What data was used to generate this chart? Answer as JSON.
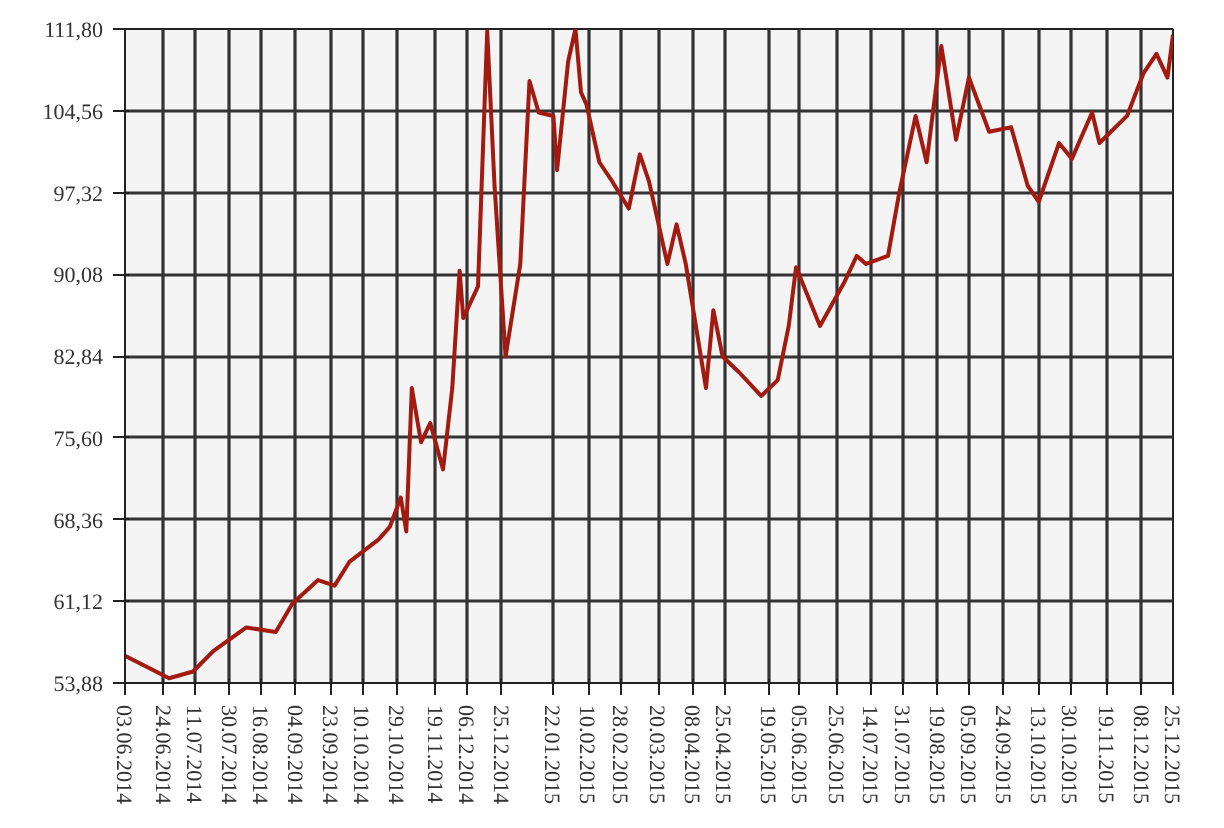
{
  "chart_data": {
    "type": "line",
    "color": "#a31a10",
    "grid": true,
    "marker": "none",
    "line_style": "solid",
    "x": [
      "2014-06-03",
      "2014-06-27",
      "2014-07-10",
      "2014-07-21",
      "2014-08-08",
      "2014-08-24",
      "2014-09-02",
      "2014-09-16",
      "2014-09-25",
      "2014-10-03",
      "2014-10-19",
      "2014-10-25",
      "2014-10-31",
      "2014-11-03",
      "2014-11-06",
      "2014-11-11",
      "2014-11-16",
      "2014-11-23",
      "2014-11-28",
      "2014-12-02",
      "2014-12-04",
      "2014-12-12",
      "2014-12-17",
      "2014-12-21",
      "2014-12-27",
      "2015-01-04",
      "2015-01-09",
      "2015-01-14",
      "2015-01-22",
      "2015-01-24",
      "2015-01-30",
      "2015-02-03",
      "2015-02-06",
      "2015-02-09",
      "2015-02-16",
      "2015-02-23",
      "2015-03-04",
      "2015-03-10",
      "2015-03-15",
      "2015-03-25",
      "2015-03-30",
      "2015-04-04",
      "2015-04-15",
      "2015-04-19",
      "2015-04-24",
      "2015-05-03",
      "2015-05-15",
      "2015-05-24",
      "2015-05-30",
      "2015-06-03",
      "2015-06-16",
      "2015-06-29",
      "2015-07-06",
      "2015-07-11",
      "2015-07-23",
      "2015-07-29",
      "2015-08-07",
      "2015-08-13",
      "2015-08-21",
      "2015-08-29",
      "2015-09-05",
      "2015-09-16",
      "2015-09-28",
      "2015-10-07",
      "2015-10-13",
      "2015-10-24",
      "2015-10-31",
      "2015-11-11",
      "2015-11-15",
      "2015-11-30",
      "2015-12-09",
      "2015-12-16",
      "2015-12-22",
      "2015-12-25"
    ],
    "values": [
      56.3,
      54.3,
      54.9,
      56.7,
      58.8,
      58.4,
      60.9,
      63.0,
      62.5,
      64.6,
      66.6,
      67.7,
      70.3,
      67.3,
      80.0,
      75.2,
      76.9,
      72.8,
      80.0,
      90.4,
      86.2,
      89.0,
      111.6,
      97.9,
      82.8,
      91.0,
      107.2,
      104.4,
      104.1,
      99.3,
      108.9,
      111.8,
      106.2,
      105.1,
      100.0,
      98.3,
      95.9,
      100.7,
      98.3,
      91.0,
      94.5,
      91.0,
      80.0,
      86.9,
      82.8,
      81.4,
      79.3,
      80.7,
      85.5,
      90.7,
      85.5,
      89.3,
      91.7,
      91.0,
      91.7,
      97.2,
      104.1,
      100.0,
      110.3,
      102.0,
      107.5,
      102.7,
      103.1,
      97.9,
      96.5,
      101.7,
      100.3,
      104.4,
      101.7,
      104.1,
      107.9,
      109.6,
      107.5,
      111.3
    ],
    "xlim": [
      "2014-06-03",
      "2015-12-25"
    ],
    "ylim": [
      53.88,
      111.8
    ],
    "yticks": [
      {
        "value": 53.88,
        "label": "53,88"
      },
      {
        "value": 61.12,
        "label": "61,12"
      },
      {
        "value": 68.36,
        "label": "68,36"
      },
      {
        "value": 75.6,
        "label": "75,60"
      },
      {
        "value": 82.84,
        "label": "82,84"
      },
      {
        "value": 90.08,
        "label": "90,08"
      },
      {
        "value": 97.32,
        "label": "97,32"
      },
      {
        "value": 104.56,
        "label": "104,56"
      },
      {
        "value": 111.8,
        "label": "111,80"
      }
    ],
    "xticks": [
      {
        "value": "2014-06-03",
        "label": "03.06.2014"
      },
      {
        "value": "2014-06-24",
        "label": "24.06.2014"
      },
      {
        "value": "2014-07-11",
        "label": "11.07.2014"
      },
      {
        "value": "2014-07-30",
        "label": "30.07.2014"
      },
      {
        "value": "2014-08-16",
        "label": "16.08.2014"
      },
      {
        "value": "2014-09-04",
        "label": "04.09.2014"
      },
      {
        "value": "2014-09-23",
        "label": "23.09.2014"
      },
      {
        "value": "2014-10-10",
        "label": "10.10.2014"
      },
      {
        "value": "2014-10-29",
        "label": "29.10.2014"
      },
      {
        "value": "2014-11-19",
        "label": "19.11.2014"
      },
      {
        "value": "2014-12-06",
        "label": "06.12.2014"
      },
      {
        "value": "2014-12-25",
        "label": "25.12.2014"
      },
      {
        "value": "2015-01-22",
        "label": "22.01.2015"
      },
      {
        "value": "2015-02-10",
        "label": "10.02.2015"
      },
      {
        "value": "2015-02-28",
        "label": "28.02.2015"
      },
      {
        "value": "2015-03-20",
        "label": "20.03.2015"
      },
      {
        "value": "2015-04-08",
        "label": "08.04.2015"
      },
      {
        "value": "2015-04-25",
        "label": "25.04.2015"
      },
      {
        "value": "2015-05-19",
        "label": "19.05.2015"
      },
      {
        "value": "2015-06-05",
        "label": "05.06.2015"
      },
      {
        "value": "2015-06-25",
        "label": "25.06.2015"
      },
      {
        "value": "2015-07-14",
        "label": "14.07.2015"
      },
      {
        "value": "2015-07-31",
        "label": "31.07.2015"
      },
      {
        "value": "2015-08-19",
        "label": "19.08.2015"
      },
      {
        "value": "2015-09-05",
        "label": "05.09.2015"
      },
      {
        "value": "2015-09-24",
        "label": "24.09.2015"
      },
      {
        "value": "2015-10-13",
        "label": "13.10.2015"
      },
      {
        "value": "2015-10-30",
        "label": "30.10.2015"
      },
      {
        "value": "2015-11-19",
        "label": "19.11.2015"
      },
      {
        "value": "2015-12-08",
        "label": "08.12.2015"
      },
      {
        "value": "2015-12-25",
        "label": "25.12.2015"
      }
    ]
  }
}
